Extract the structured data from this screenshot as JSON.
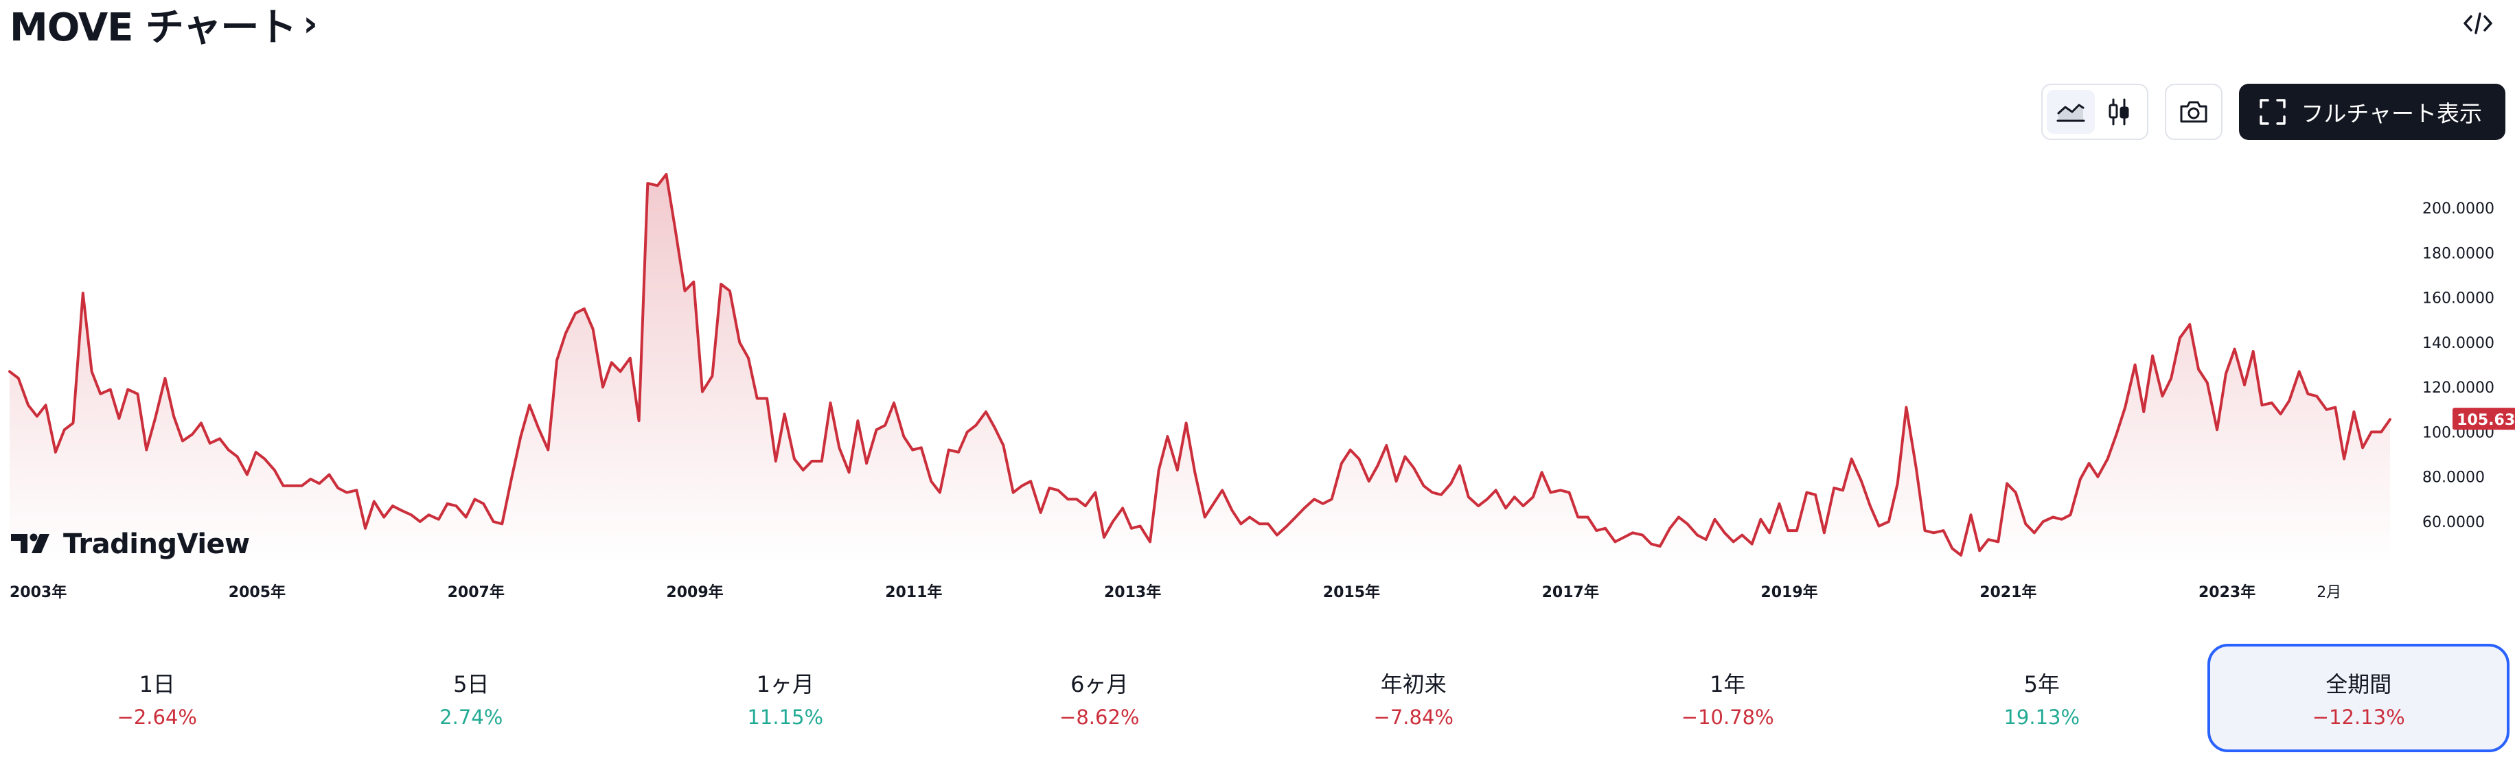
{
  "header": {
    "title": "MOVE チャート",
    "chevron": "›",
    "embed_icon": "code-icon"
  },
  "toolbar": {
    "area_style_icon": "area-chart-icon",
    "candle_style_icon": "candlestick-icon",
    "snapshot_icon": "camera-icon",
    "fullchart_icon": "fullscreen-icon",
    "fullchart_label": "フルチャート表示"
  },
  "watermark": {
    "logo": "tradingview-logo",
    "text": "TradingView"
  },
  "colors": {
    "line": "#cc2f3c",
    "area_top": "#f1c7cb",
    "area_bottom": "#ffffff",
    "negative": "#cc2f3c",
    "positive": "#22ab94",
    "active_border": "#2962ff",
    "dark_button": "#131722"
  },
  "chart_data": {
    "type": "area",
    "title": "",
    "xlabel": "",
    "ylabel": "",
    "ylim": [
      45,
      215
    ],
    "yticks": [
      "60.0000",
      "80.0000",
      "100.0000",
      "120.0000",
      "140.0000",
      "160.0000",
      "180.0000",
      "200.0000"
    ],
    "xticks": [
      {
        "label": "2003年",
        "x": 2003.0
      },
      {
        "label": "2005年",
        "x": 2005.0
      },
      {
        "label": "2007年",
        "x": 2007.0
      },
      {
        "label": "2009年",
        "x": 2009.0
      },
      {
        "label": "2011年",
        "x": 2011.0
      },
      {
        "label": "2013年",
        "x": 2013.0
      },
      {
        "label": "2015年",
        "x": 2015.0
      },
      {
        "label": "2017年",
        "x": 2017.0
      },
      {
        "label": "2019年",
        "x": 2019.0
      },
      {
        "label": "2021年",
        "x": 2021.0
      },
      {
        "label": "2023年",
        "x": 2023.0
      },
      {
        "label": "2月",
        "x": 2024.08
      }
    ],
    "last_value_label": "105.6328",
    "last_value": 105.6,
    "series": [
      {
        "points": [
          [
            2003.0,
            127
          ],
          [
            2003.08,
            124
          ],
          [
            2003.17,
            112
          ],
          [
            2003.25,
            107
          ],
          [
            2003.33,
            112
          ],
          [
            2003.42,
            91
          ],
          [
            2003.5,
            101
          ],
          [
            2003.58,
            104
          ],
          [
            2003.67,
            162
          ],
          [
            2003.75,
            127
          ],
          [
            2003.83,
            117
          ],
          [
            2003.92,
            119
          ],
          [
            2004.0,
            106
          ],
          [
            2004.08,
            119
          ],
          [
            2004.17,
            117
          ],
          [
            2004.25,
            92
          ],
          [
            2004.33,
            106
          ],
          [
            2004.42,
            124
          ],
          [
            2004.5,
            107
          ],
          [
            2004.58,
            96
          ],
          [
            2004.67,
            99
          ],
          [
            2004.75,
            104
          ],
          [
            2004.83,
            95
          ],
          [
            2004.92,
            97
          ],
          [
            2005.0,
            92
          ],
          [
            2005.08,
            89
          ],
          [
            2005.17,
            81
          ],
          [
            2005.25,
            91
          ],
          [
            2005.33,
            88
          ],
          [
            2005.42,
            83
          ],
          [
            2005.5,
            76
          ],
          [
            2005.58,
            76
          ],
          [
            2005.67,
            76
          ],
          [
            2005.75,
            79
          ],
          [
            2005.83,
            77
          ],
          [
            2005.92,
            81
          ],
          [
            2006.0,
            75
          ],
          [
            2006.08,
            73
          ],
          [
            2006.17,
            74
          ],
          [
            2006.25,
            57
          ],
          [
            2006.33,
            69
          ],
          [
            2006.42,
            62
          ],
          [
            2006.5,
            67
          ],
          [
            2006.58,
            65
          ],
          [
            2006.67,
            63
          ],
          [
            2006.75,
            60
          ],
          [
            2006.83,
            63
          ],
          [
            2006.92,
            61
          ],
          [
            2007.0,
            68
          ],
          [
            2007.08,
            67
          ],
          [
            2007.17,
            62
          ],
          [
            2007.25,
            70
          ],
          [
            2007.33,
            68
          ],
          [
            2007.42,
            60
          ],
          [
            2007.5,
            59
          ],
          [
            2007.58,
            78
          ],
          [
            2007.67,
            98
          ],
          [
            2007.75,
            112
          ],
          [
            2007.83,
            102
          ],
          [
            2007.92,
            92
          ],
          [
            2008.0,
            132
          ],
          [
            2008.08,
            144
          ],
          [
            2008.17,
            153
          ],
          [
            2008.25,
            155
          ],
          [
            2008.33,
            146
          ],
          [
            2008.42,
            120
          ],
          [
            2008.5,
            131
          ],
          [
            2008.58,
            127
          ],
          [
            2008.67,
            133
          ],
          [
            2008.75,
            105
          ],
          [
            2008.83,
            211
          ],
          [
            2008.92,
            210
          ],
          [
            2009.0,
            215
          ],
          [
            2009.08,
            191
          ],
          [
            2009.17,
            163
          ],
          [
            2009.25,
            167
          ],
          [
            2009.33,
            118
          ],
          [
            2009.42,
            125
          ],
          [
            2009.5,
            166
          ],
          [
            2009.58,
            163
          ],
          [
            2009.67,
            140
          ],
          [
            2009.75,
            133
          ],
          [
            2009.83,
            115
          ],
          [
            2009.92,
            115
          ],
          [
            2010.0,
            87
          ],
          [
            2010.08,
            108
          ],
          [
            2010.17,
            88
          ],
          [
            2010.25,
            83
          ],
          [
            2010.33,
            87
          ],
          [
            2010.42,
            87
          ],
          [
            2010.5,
            113
          ],
          [
            2010.58,
            93
          ],
          [
            2010.67,
            82
          ],
          [
            2010.75,
            105
          ],
          [
            2010.83,
            86
          ],
          [
            2010.92,
            101
          ],
          [
            2011.0,
            103
          ],
          [
            2011.08,
            113
          ],
          [
            2011.17,
            98
          ],
          [
            2011.25,
            92
          ],
          [
            2011.33,
            93
          ],
          [
            2011.42,
            78
          ],
          [
            2011.5,
            73
          ],
          [
            2011.58,
            92
          ],
          [
            2011.67,
            91
          ],
          [
            2011.75,
            100
          ],
          [
            2011.83,
            103
          ],
          [
            2011.92,
            109
          ],
          [
            2012.0,
            102
          ],
          [
            2012.08,
            94
          ],
          [
            2012.17,
            73
          ],
          [
            2012.25,
            76
          ],
          [
            2012.33,
            78
          ],
          [
            2012.42,
            64
          ],
          [
            2012.5,
            75
          ],
          [
            2012.58,
            74
          ],
          [
            2012.67,
            70
          ],
          [
            2012.75,
            70
          ],
          [
            2012.83,
            67
          ],
          [
            2012.92,
            73
          ],
          [
            2013.0,
            53
          ],
          [
            2013.08,
            60
          ],
          [
            2013.17,
            66
          ],
          [
            2013.25,
            57
          ],
          [
            2013.33,
            58
          ],
          [
            2013.42,
            51
          ],
          [
            2013.5,
            83
          ],
          [
            2013.58,
            98
          ],
          [
            2013.67,
            83
          ],
          [
            2013.75,
            104
          ],
          [
            2013.83,
            82
          ],
          [
            2013.92,
            62
          ],
          [
            2014.0,
            68
          ],
          [
            2014.08,
            74
          ],
          [
            2014.17,
            65
          ],
          [
            2014.25,
            59
          ],
          [
            2014.33,
            62
          ],
          [
            2014.42,
            59
          ],
          [
            2014.5,
            59
          ],
          [
            2014.58,
            54
          ],
          [
            2014.67,
            58
          ],
          [
            2014.75,
            62
          ],
          [
            2014.83,
            66
          ],
          [
            2014.92,
            70
          ],
          [
            2015.0,
            68
          ],
          [
            2015.08,
            70
          ],
          [
            2015.17,
            86
          ],
          [
            2015.25,
            92
          ],
          [
            2015.33,
            88
          ],
          [
            2015.42,
            78
          ],
          [
            2015.5,
            85
          ],
          [
            2015.58,
            94
          ],
          [
            2015.67,
            78
          ],
          [
            2015.75,
            89
          ],
          [
            2015.83,
            84
          ],
          [
            2015.92,
            76
          ],
          [
            2016.0,
            73
          ],
          [
            2016.08,
            72
          ],
          [
            2016.17,
            77
          ],
          [
            2016.25,
            85
          ],
          [
            2016.33,
            71
          ],
          [
            2016.42,
            67
          ],
          [
            2016.5,
            70
          ],
          [
            2016.58,
            74
          ],
          [
            2016.67,
            66
          ],
          [
            2016.75,
            71
          ],
          [
            2016.83,
            67
          ],
          [
            2016.92,
            71
          ],
          [
            2017.0,
            82
          ],
          [
            2017.08,
            73
          ],
          [
            2017.17,
            74
          ],
          [
            2017.25,
            73
          ],
          [
            2017.33,
            62
          ],
          [
            2017.42,
            62
          ],
          [
            2017.5,
            56
          ],
          [
            2017.58,
            57
          ],
          [
            2017.67,
            51
          ],
          [
            2017.75,
            53
          ],
          [
            2017.83,
            55
          ],
          [
            2017.92,
            54
          ],
          [
            2018.0,
            50
          ],
          [
            2018.08,
            49
          ],
          [
            2018.17,
            57
          ],
          [
            2018.25,
            62
          ],
          [
            2018.33,
            59
          ],
          [
            2018.42,
            54
          ],
          [
            2018.5,
            52
          ],
          [
            2018.58,
            61
          ],
          [
            2018.67,
            55
          ],
          [
            2018.75,
            51
          ],
          [
            2018.83,
            54
          ],
          [
            2018.92,
            50
          ],
          [
            2019.0,
            61
          ],
          [
            2019.08,
            55
          ],
          [
            2019.17,
            68
          ],
          [
            2019.25,
            56
          ],
          [
            2019.33,
            56
          ],
          [
            2019.42,
            73
          ],
          [
            2019.5,
            72
          ],
          [
            2019.58,
            55
          ],
          [
            2019.67,
            75
          ],
          [
            2019.75,
            74
          ],
          [
            2019.83,
            88
          ],
          [
            2019.92,
            78
          ],
          [
            2020.0,
            67
          ],
          [
            2020.08,
            58
          ],
          [
            2020.17,
            60
          ],
          [
            2020.25,
            77
          ],
          [
            2020.33,
            111
          ],
          [
            2020.42,
            84
          ],
          [
            2020.5,
            56
          ],
          [
            2020.58,
            55
          ],
          [
            2020.67,
            56
          ],
          [
            2020.75,
            48
          ],
          [
            2020.83,
            45
          ],
          [
            2020.92,
            63
          ],
          [
            2021.0,
            47
          ],
          [
            2021.08,
            52
          ],
          [
            2021.17,
            51
          ],
          [
            2021.25,
            77
          ],
          [
            2021.33,
            73
          ],
          [
            2021.42,
            59
          ],
          [
            2021.5,
            55
          ],
          [
            2021.58,
            60
          ],
          [
            2021.67,
            62
          ],
          [
            2021.75,
            61
          ],
          [
            2021.83,
            63
          ],
          [
            2021.92,
            79
          ],
          [
            2022.0,
            86
          ],
          [
            2022.08,
            80
          ],
          [
            2022.17,
            88
          ],
          [
            2022.25,
            99
          ],
          [
            2022.33,
            111
          ],
          [
            2022.42,
            130
          ],
          [
            2022.5,
            109
          ],
          [
            2022.58,
            134
          ],
          [
            2022.67,
            116
          ],
          [
            2022.75,
            124
          ],
          [
            2022.83,
            142
          ],
          [
            2022.92,
            148
          ],
          [
            2023.0,
            128
          ],
          [
            2023.08,
            122
          ],
          [
            2023.17,
            101
          ],
          [
            2023.25,
            126
          ],
          [
            2023.33,
            137
          ],
          [
            2023.42,
            121
          ],
          [
            2023.5,
            136
          ],
          [
            2023.58,
            112
          ],
          [
            2023.67,
            113
          ],
          [
            2023.75,
            108
          ],
          [
            2023.83,
            114
          ],
          [
            2023.92,
            127
          ],
          [
            2024.0,
            117
          ],
          [
            2024.08,
            116
          ],
          [
            2024.17,
            110
          ],
          [
            2024.25,
            111
          ],
          [
            2024.33,
            88
          ],
          [
            2024.42,
            109
          ],
          [
            2024.5,
            93
          ],
          [
            2024.58,
            100
          ],
          [
            2024.67,
            100
          ],
          [
            2024.75,
            105.6
          ]
        ]
      }
    ],
    "grid": false,
    "legend": "none"
  },
  "periods": [
    {
      "label": "1日",
      "change": "−2.64%",
      "sign": "neg",
      "active": false
    },
    {
      "label": "5日",
      "change": "2.74%",
      "sign": "pos",
      "active": false
    },
    {
      "label": "1ヶ月",
      "change": "11.15%",
      "sign": "pos",
      "active": false
    },
    {
      "label": "6ヶ月",
      "change": "−8.62%",
      "sign": "neg",
      "active": false
    },
    {
      "label": "年初来",
      "change": "−7.84%",
      "sign": "neg",
      "active": false
    },
    {
      "label": "1年",
      "change": "−10.78%",
      "sign": "neg",
      "active": false
    },
    {
      "label": "5年",
      "change": "19.13%",
      "sign": "pos",
      "active": false
    },
    {
      "label": "全期間",
      "change": "−12.13%",
      "sign": "neg",
      "active": true
    }
  ]
}
